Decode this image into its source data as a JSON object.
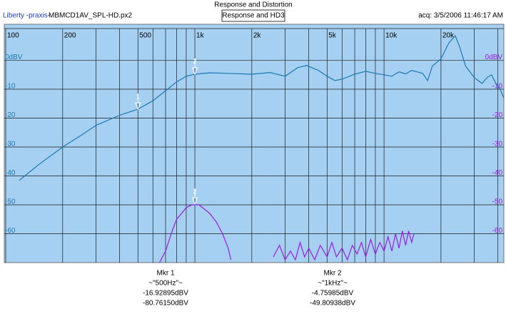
{
  "chart_data": {
    "type": "line",
    "title": "Response and Distortion",
    "subtitle": "Response and HD3",
    "source": "Liberty -praxis-",
    "file": "MBMCD1AV_SPL-HD.px2",
    "acquired": "acq: 3/5/2006 11:46:17 AM",
    "log_x": true,
    "grid": true,
    "xlim": [
      100,
      43000
    ],
    "ylim": [
      -70,
      11
    ],
    "xticks": [
      100,
      200,
      500,
      {
        "value": 1000,
        "label": "1k"
      },
      {
        "value": 2000,
        "label": "2k"
      },
      {
        "value": 5000,
        "label": "5k"
      },
      {
        "value": 10000,
        "label": "10k"
      },
      {
        "value": 20000,
        "label": "20k"
      }
    ],
    "xminorticks": [
      300,
      400,
      600,
      700,
      800,
      900,
      3000,
      4000,
      6000,
      7000,
      8000,
      9000,
      30000,
      40000
    ],
    "yticks": [
      {
        "value": 0,
        "label": "0dBV"
      },
      -10,
      -20,
      -30,
      -40,
      -50,
      -60
    ],
    "series": [
      {
        "name": "Response",
        "color": "#1b79b3",
        "x": [
          118,
          150,
          200,
          250,
          300,
          400,
          500,
          600,
          700,
          800,
          900,
          1000,
          1200,
          1500,
          2000,
          2500,
          3000,
          3500,
          3900,
          4500,
          5000,
          5500,
          6000,
          7000,
          8000,
          9000,
          10000,
          11000,
          12000,
          13000,
          14000,
          16000,
          17000,
          18000,
          20000,
          22000,
          23800,
          25000,
          27000,
          30000,
          33000,
          35000,
          37000,
          39000,
          41000,
          43000
        ],
        "values": [
          -41.5,
          -36,
          -30,
          -26,
          -22.5,
          -19,
          -16.9,
          -14,
          -10.5,
          -7.5,
          -5.5,
          -4.8,
          -4.3,
          -4.5,
          -4.8,
          -4.2,
          -5.5,
          -2.5,
          -1.8,
          -3.5,
          -5.5,
          -7,
          -6.5,
          -4.8,
          -3.8,
          -4.5,
          -5,
          -5.5,
          -4,
          -4.7,
          -3.5,
          -4.5,
          -7,
          -2,
          0.5,
          6,
          8.5,
          5,
          -2,
          -6,
          -8,
          -6,
          -5,
          -8,
          -10,
          -13
        ]
      },
      {
        "name": "HD3",
        "color": "#9a1ae6",
        "x": [
          650,
          700,
          750,
          800,
          850,
          900,
          950,
          1000,
          1050,
          1100,
          1200,
          1300,
          1400,
          1500,
          1550,
          1800,
          2600,
          2800,
          3000,
          3200,
          3400,
          3600,
          3800,
          4000,
          4300,
          4600,
          5000,
          5300,
          5600,
          6000,
          6400,
          6800,
          7200,
          7600,
          8000,
          8500,
          9000,
          9500,
          10000,
          10500,
          11000,
          11500,
          12000,
          12500,
          13000,
          13500,
          14000,
          14400
        ],
        "values": [
          -70,
          -66,
          -60,
          -55,
          -53,
          -51,
          -50.2,
          -49.8,
          -50,
          -51,
          -53,
          -56,
          -60,
          -65,
          -69,
          null,
          -68,
          -64,
          -69,
          -66,
          -69,
          -63,
          -68,
          -65,
          -69,
          -64,
          -68,
          -63,
          -68,
          -65,
          -69,
          -64,
          -67,
          -63,
          -68,
          -62,
          -67,
          -63,
          -66,
          -61,
          -66,
          -60,
          -65,
          -59,
          -64,
          -59,
          -63,
          -60
        ]
      }
    ],
    "markers": [
      {
        "label": "Mkr 1",
        "number": "1",
        "freq": "~\"500Hz\"~",
        "x": 500,
        "values": [
          -16.92895,
          -80.7615
        ],
        "value_labels": [
          "-16.92895dBV",
          "-80.76150dBV"
        ]
      },
      {
        "label": "Mkr 2",
        "number": "2",
        "freq": "~\"1kHz\"~",
        "x": 1000,
        "values": [
          -4.75985,
          -49.80938
        ],
        "value_labels": [
          "-4.75985dBV",
          "-49.80938dBV"
        ]
      }
    ]
  }
}
